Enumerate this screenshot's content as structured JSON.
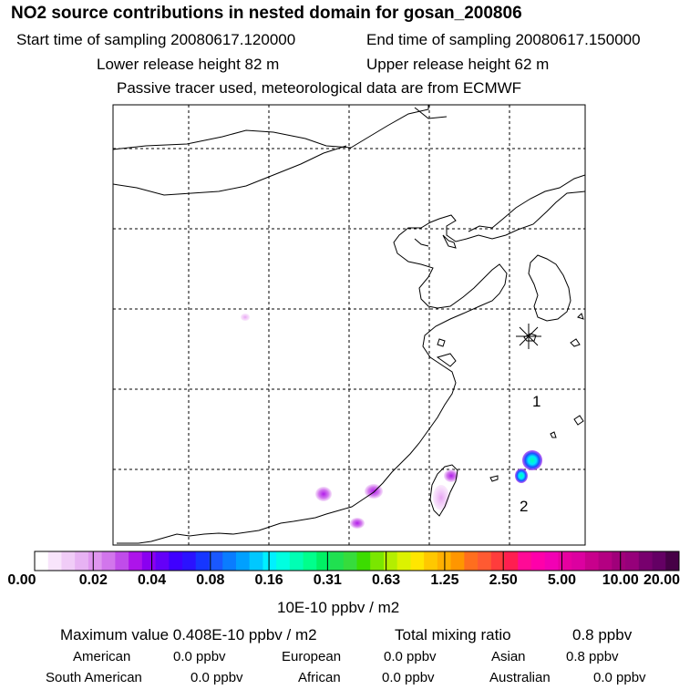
{
  "header": {
    "title": "NO2 source contributions in nested domain for gosan_200806",
    "start_label": "Start time of sampling 20080617.120000",
    "end_label": "End time of sampling 20080617.150000",
    "lower_label": "Lower release height   82 m",
    "upper_label": "Upper release height   62 m",
    "tracer_note": "Passive tracer used, meteorological data are from ECMWF"
  },
  "map": {
    "receptor_marker": "asterisk",
    "labels": [
      {
        "id": "label-1",
        "text": "1"
      },
      {
        "id": "label-2",
        "text": "2"
      }
    ]
  },
  "colorbar": {
    "ticks": [
      "0.00",
      "0.02",
      "0.04",
      "0.08",
      "0.16",
      "0.31",
      "0.63",
      "1.25",
      "2.50",
      "5.00",
      "10.00",
      "20.00"
    ],
    "colors": [
      "#ffffff",
      "#f8e4fb",
      "#f0ccf7",
      "#e7b2f3",
      "#df96ef",
      "#d276ec",
      "#c04cea",
      "#ad14ea",
      "#8a00f0",
      "#6400f8",
      "#3f00ff",
      "#2b12ff",
      "#1636ff",
      "#1a58ff",
      "#0a7cff",
      "#00a0ff",
      "#00c8ff",
      "#00f0ff",
      "#00ffe0",
      "#00ffb4",
      "#00ff8c",
      "#00f064",
      "#20e050",
      "#36dc3c",
      "#3cdc00",
      "#7ae600",
      "#b4ee00",
      "#dcf200",
      "#ffe600",
      "#ffc800",
      "#ffb000",
      "#ff9600",
      "#ff6e1e",
      "#ff5a32",
      "#ff3c3c",
      "#ff1e50",
      "#ff0a96",
      "#ff00aa",
      "#f200b4",
      "#e600a0",
      "#dc00a0",
      "#c8008c",
      "#b40082",
      "#a0007a",
      "#96007a",
      "#78006e",
      "#640064",
      "#460046"
    ],
    "units": "10E-10 ppbv / m2"
  },
  "stats": {
    "max_label": "Maximum value  0.408E-10 ppbv / m2",
    "total_label": "Total mixing ratio",
    "total_value": "0.8 ppbv",
    "regions": [
      {
        "name": "American",
        "value": "0.0 ppbv"
      },
      {
        "name": "European",
        "value": "0.0 ppbv"
      },
      {
        "name": "Asian",
        "value": "0.8 ppbv"
      },
      {
        "name": "South American",
        "value": "0.0 ppbv"
      },
      {
        "name": "African",
        "value": "0.0 ppbv"
      },
      {
        "name": "Australian",
        "value": "0.0 ppbv"
      }
    ]
  }
}
